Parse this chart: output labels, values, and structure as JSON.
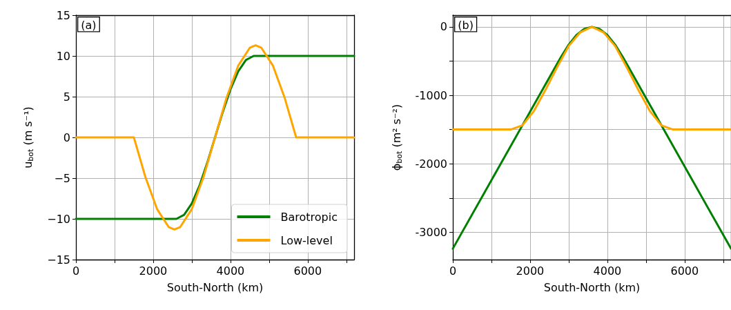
{
  "chart_data": [
    {
      "type": "line",
      "xlabel": "South-North (km)",
      "ylabel": "u$_{bot}$ (m s⁻¹)",
      "annotations": [
        "(a)"
      ],
      "xlim": [
        0,
        7200
      ],
      "xticks": [
        0,
        {
          "value": 1000,
          "label": null
        },
        2000,
        {
          "value": 3000,
          "label": null
        },
        4000,
        {
          "value": 5000,
          "label": null
        },
        6000,
        {
          "value": 7000,
          "label": null
        }
      ],
      "ylim": [
        -15,
        15
      ],
      "yticks": [
        {
          "value": -15,
          "label": "−15"
        },
        {
          "value": -10,
          "label": "−10"
        },
        {
          "value": -5,
          "label": "−5"
        },
        0,
        5,
        10,
        15
      ],
      "grid": true,
      "legend": "bottom right",
      "marker": "none",
      "line_style": "solid",
      "series": [
        {
          "name": "Barotropic",
          "color": "#008000",
          "x": [
            0,
            2600,
            2800,
            3000,
            3200,
            3400,
            3600,
            3800,
            4000,
            4200,
            4400,
            4600,
            7200
          ],
          "values": [
            -10,
            -10,
            -9.5,
            -8.1,
            -5.9,
            -3.1,
            0,
            3.1,
            5.9,
            8.1,
            9.5,
            10,
            10
          ]
        },
        {
          "name": "Low-level",
          "color": "#ffa500",
          "x": [
            0,
            1500,
            1800,
            2100,
            2400,
            2550,
            2700,
            3000,
            3300,
            3600,
            3900,
            4200,
            4500,
            4650,
            4800,
            5100,
            5400,
            5700,
            7200
          ],
          "values": [
            0,
            0,
            -4.9,
            -8.8,
            -11,
            -11.3,
            -11,
            -8.8,
            -4.9,
            0,
            4.9,
            8.8,
            11,
            11.3,
            11,
            8.8,
            4.9,
            0,
            0
          ]
        }
      ]
    },
    {
      "type": "line",
      "xlabel": "South-North (km)",
      "ylabel": "ϕ$_{bot}$ (m² s⁻²)",
      "annotations": [
        "(b)"
      ],
      "xlim": [
        0,
        7200
      ],
      "xticks": [
        0,
        {
          "value": 1000,
          "label": null
        },
        2000,
        {
          "value": 3000,
          "label": null
        },
        4000,
        {
          "value": 5000,
          "label": null
        },
        6000,
        {
          "value": 7000,
          "label": null
        }
      ],
      "ylim": [
        -3400,
        170
      ],
      "yticks": [
        -3000,
        {
          "value": -2500,
          "label": null
        },
        -2000,
        {
          "value": -1500,
          "label": null
        },
        -1000,
        {
          "value": -500,
          "label": null
        },
        0
      ],
      "grid": true,
      "marker": "none",
      "line_style": "solid",
      "series": [
        {
          "color": "#008000",
          "x": [
            0,
            2000,
            2600,
            2800,
            3000,
            3200,
            3400,
            3600,
            3800,
            4000,
            4200,
            4400,
            4600,
            5200,
            7200
          ],
          "values": [
            -3240,
            -1240,
            -640,
            -440,
            -260,
            -120,
            -30,
            0,
            -30,
            -120,
            -260,
            -440,
            -640,
            -1240,
            -3240
          ]
        },
        {
          "color": "#ffa500",
          "x": [
            0,
            1500,
            1800,
            2100,
            2400,
            2700,
            3000,
            3300,
            3600,
            3900,
            4200,
            4500,
            4800,
            5100,
            5400,
            5700,
            7200
          ],
          "values": [
            -1500,
            -1500,
            -1440,
            -1230,
            -920,
            -590,
            -280,
            -80,
            0,
            -80,
            -280,
            -590,
            -920,
            -1230,
            -1440,
            -1500,
            -1500
          ]
        }
      ]
    }
  ]
}
